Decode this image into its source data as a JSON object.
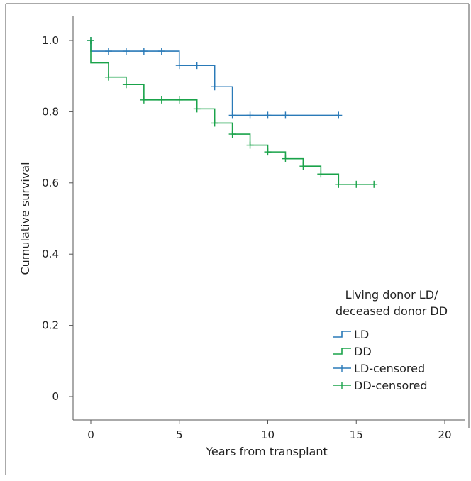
{
  "chart_data": {
    "type": "line",
    "xlabel": "Years from transplant",
    "ylabel": "Cumulative survival",
    "xlim": [
      0,
      20
    ],
    "ylim": [
      0,
      1.0
    ],
    "x_ticks": [
      "0",
      "5",
      "10",
      "15",
      "20"
    ],
    "y_ticks": [
      "0",
      "0.2",
      "0.4",
      "0.6",
      "0.8",
      "1.0"
    ],
    "grid": false,
    "legend_placement": "bottom-right",
    "legend_title": [
      "Living donor LD/",
      "deceased donor DD"
    ],
    "colors": {
      "LD": "#2a7ab8",
      "DD": "#1aa34a"
    },
    "series": [
      {
        "name": "LD",
        "steps": [
          [
            0,
            1.0
          ],
          [
            0,
            0.97
          ],
          [
            5,
            0.93
          ],
          [
            7,
            0.87
          ],
          [
            8,
            0.79
          ],
          [
            14,
            0.79
          ]
        ],
        "censored": [
          [
            0,
            1.0
          ],
          [
            1,
            0.97
          ],
          [
            2,
            0.97
          ],
          [
            3,
            0.97
          ],
          [
            4,
            0.97
          ],
          [
            5,
            0.93
          ],
          [
            6,
            0.93
          ],
          [
            7,
            0.87
          ],
          [
            8,
            0.79
          ],
          [
            9,
            0.79
          ],
          [
            10,
            0.79
          ],
          [
            11,
            0.79
          ],
          [
            14,
            0.79
          ]
        ]
      },
      {
        "name": "DD",
        "steps": [
          [
            0,
            1.0
          ],
          [
            0,
            0.937
          ],
          [
            1,
            0.897
          ],
          [
            2,
            0.876
          ],
          [
            3,
            0.833
          ],
          [
            6,
            0.808
          ],
          [
            7,
            0.768
          ],
          [
            8,
            0.737
          ],
          [
            9,
            0.706
          ],
          [
            10,
            0.687
          ],
          [
            11,
            0.668
          ],
          [
            12,
            0.647
          ],
          [
            13,
            0.625
          ],
          [
            14,
            0.596
          ],
          [
            16,
            0.596
          ]
        ],
        "censored": [
          [
            0,
            1.0
          ],
          [
            1,
            0.897
          ],
          [
            2,
            0.876
          ],
          [
            3,
            0.833
          ],
          [
            4,
            0.833
          ],
          [
            5,
            0.833
          ],
          [
            6,
            0.808
          ],
          [
            7,
            0.768
          ],
          [
            8,
            0.737
          ],
          [
            9,
            0.706
          ],
          [
            10,
            0.687
          ],
          [
            11,
            0.668
          ],
          [
            12,
            0.647
          ],
          [
            13,
            0.625
          ],
          [
            14,
            0.596
          ],
          [
            15,
            0.596
          ],
          [
            16,
            0.596
          ]
        ]
      }
    ],
    "legend": [
      {
        "label": "LD",
        "series": "LD",
        "kind": "step"
      },
      {
        "label": "DD",
        "series": "DD",
        "kind": "step"
      },
      {
        "label": "LD-censored",
        "series": "LD",
        "kind": "censor"
      },
      {
        "label": "DD-censored",
        "series": "DD",
        "kind": "censor"
      }
    ]
  }
}
